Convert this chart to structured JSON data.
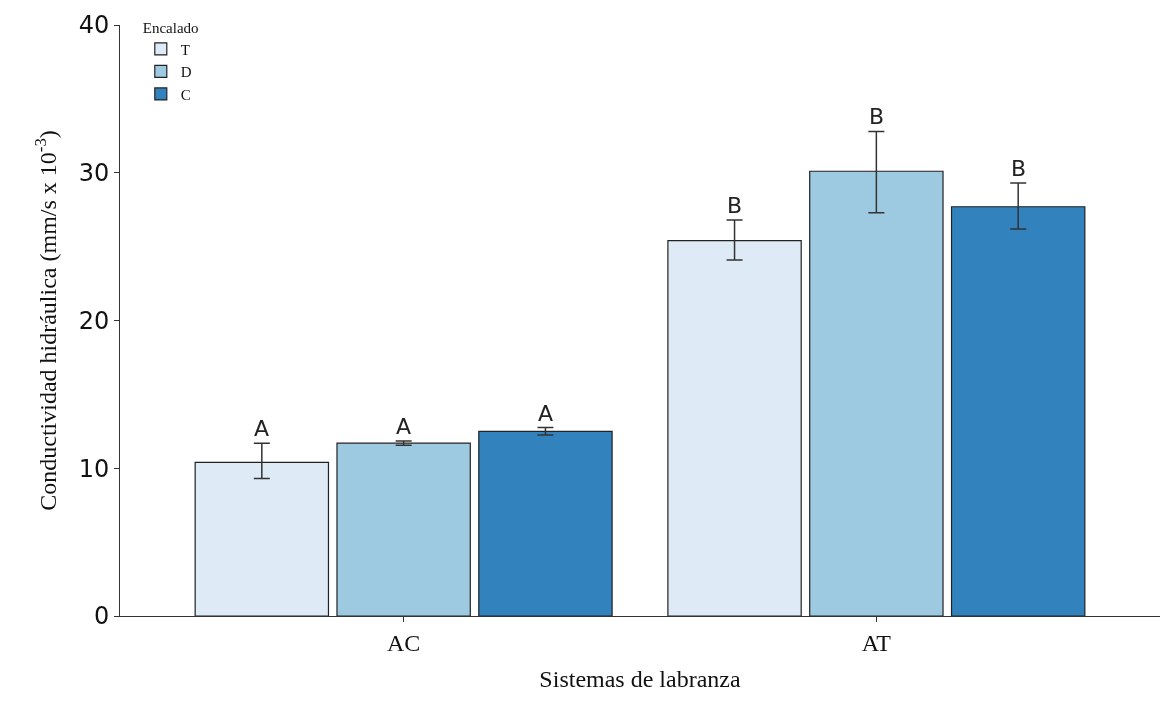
{
  "chart_data": {
    "type": "bar",
    "xlabel": "Sistemas de labranza",
    "ylabel": "Conductividad hidráulica (mm/s x 10$^{-3}$)",
    "legend_title": "Encalado",
    "categories": [
      "AC",
      "AT"
    ],
    "series": [
      {
        "name": "T",
        "color": "#deebf7",
        "values": [
          10.4,
          25.4
        ],
        "errors": [
          [
            9.3,
            11.7
          ],
          [
            24.1,
            26.8
          ]
        ],
        "value_labels": [
          "A",
          "B"
        ]
      },
      {
        "name": "D",
        "color": "#9ecae1",
        "values": [
          11.7,
          30.1
        ],
        "errors": [
          [
            11.55,
            11.85
          ],
          [
            27.3,
            32.8
          ]
        ],
        "value_labels": [
          "A",
          "B"
        ]
      },
      {
        "name": "C",
        "color": "#3182bd",
        "values": [
          12.5,
          27.7
        ],
        "errors": [
          [
            12.25,
            12.75
          ],
          [
            26.2,
            29.3
          ]
        ],
        "value_labels": [
          "A",
          "B"
        ]
      }
    ],
    "ylim": [
      0,
      40
    ],
    "yticks": [
      0,
      10,
      20,
      30,
      40
    ],
    "legend": "top left"
  }
}
